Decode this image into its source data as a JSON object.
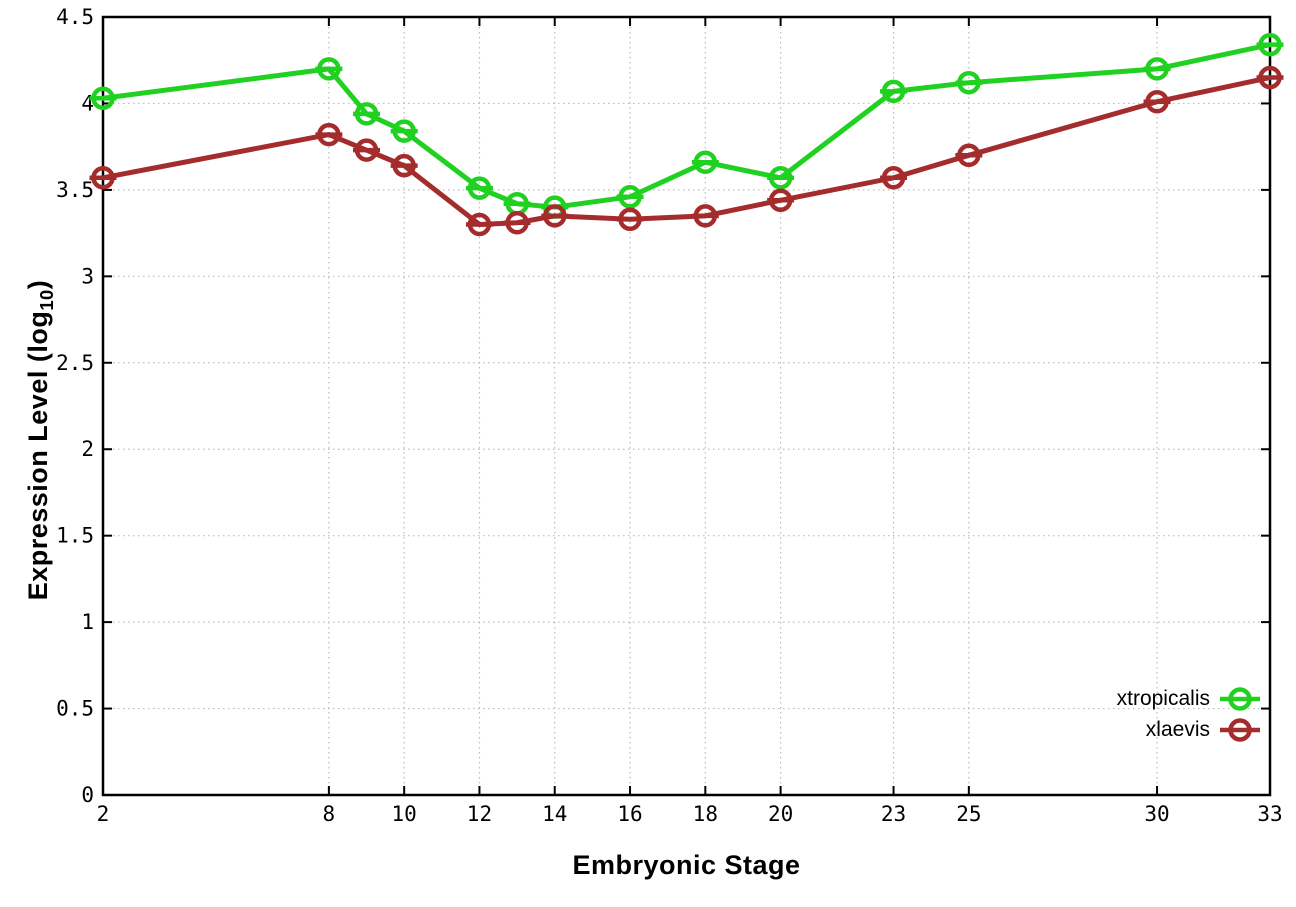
{
  "figure": {
    "background_color": "#ffffff",
    "xlabel": "Embryonic Stage",
    "ylabel": "Expression Level (log10)",
    "ylabel_parts": {
      "prefix": "Expression Level (log",
      "sub": "10",
      "suffix": ")"
    }
  },
  "chart_data": {
    "type": "line",
    "title": "",
    "xlabel": "Embryonic Stage",
    "ylabel": "Expression Level (log10)",
    "x": [
      2,
      8,
      9,
      10,
      12,
      13,
      14,
      16,
      18,
      20,
      23,
      25,
      30,
      33
    ],
    "series": [
      {
        "name": "xtropicalis",
        "color": "#21d121",
        "values": [
          4.03,
          4.2,
          3.94,
          3.84,
          3.51,
          3.42,
          3.4,
          3.46,
          3.66,
          3.57,
          4.07,
          4.12,
          4.2,
          4.34
        ]
      },
      {
        "name": "xlaevis",
        "color": "#a52c2c",
        "values": [
          3.57,
          3.82,
          3.73,
          3.64,
          3.3,
          3.31,
          3.35,
          3.33,
          3.35,
          3.44,
          3.57,
          3.7,
          4.01,
          4.15
        ]
      }
    ],
    "x_ticks": [
      2,
      8,
      10,
      12,
      14,
      16,
      18,
      20,
      23,
      25,
      30,
      33
    ],
    "y_ticks": [
      0,
      0.5,
      1,
      1.5,
      2,
      2.5,
      3,
      3.5,
      4,
      4.5
    ],
    "xlim": [
      2,
      33
    ],
    "ylim": [
      0,
      4.5
    ],
    "grid": true,
    "legend_position": "bottom-right",
    "point_style": "open-circle-with-horizontal-error-bar",
    "axis_color": "#000000",
    "grid_color": "#bbbbbb",
    "tick_label_color": "#000000"
  }
}
